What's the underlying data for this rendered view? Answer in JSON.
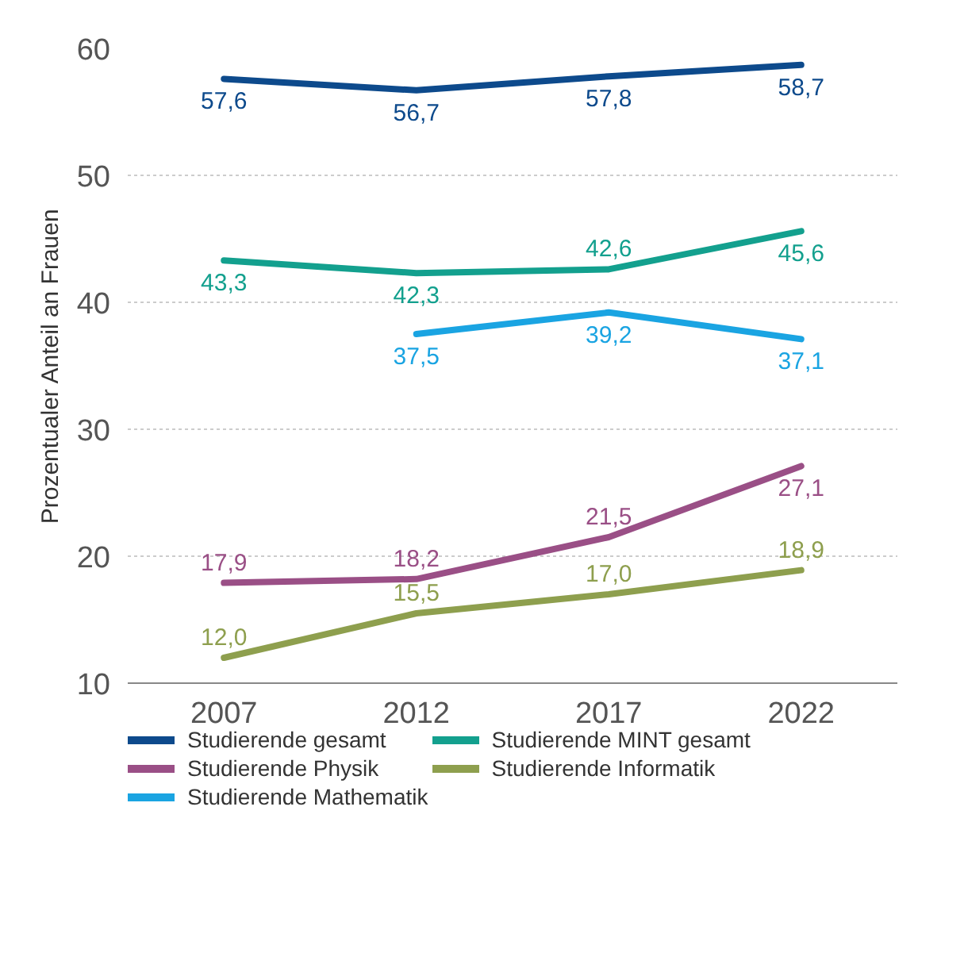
{
  "chart_data": {
    "type": "line",
    "ylabel": "Prozentualer Anteil an Frauen",
    "categories": [
      "2007",
      "2012",
      "2017",
      "2022"
    ],
    "ylim": [
      10,
      60
    ],
    "yticks": [
      10,
      20,
      30,
      40,
      50,
      60
    ],
    "grid": "y",
    "legend": "bottom",
    "marker": "none",
    "line_style": "solid",
    "series": [
      {
        "name": "Studierende gesamt",
        "color": "#0d4a8c",
        "values": [
          57.6,
          56.7,
          57.8,
          58.7
        ],
        "value_labels": [
          "57,6",
          "56,7",
          "57,8",
          "58,7"
        ]
      },
      {
        "name": "Studierende MINT gesamt",
        "color": "#13a08e",
        "values": [
          43.3,
          42.3,
          42.6,
          45.6
        ],
        "value_labels": [
          "43,3",
          "42,3",
          "42,6",
          "45,6"
        ]
      },
      {
        "name": "Studierende Physik",
        "color": "#9a4f86",
        "values": [
          17.9,
          18.2,
          21.5,
          27.1
        ],
        "value_labels": [
          "17,9",
          "18,2",
          "21,5",
          "27,1"
        ]
      },
      {
        "name": "Studierende Informatik",
        "color": "#8e9f4e",
        "values": [
          12.0,
          15.5,
          17.0,
          18.9
        ],
        "value_labels": [
          "12,0",
          "15,5",
          "17,0",
          "18,9"
        ]
      },
      {
        "name": "Studierende Mathematik",
        "color": "#1aa4e2",
        "values": [
          null,
          37.5,
          39.2,
          37.1
        ],
        "value_labels": [
          null,
          "37,5",
          "39,2",
          "37,1"
        ]
      }
    ]
  }
}
